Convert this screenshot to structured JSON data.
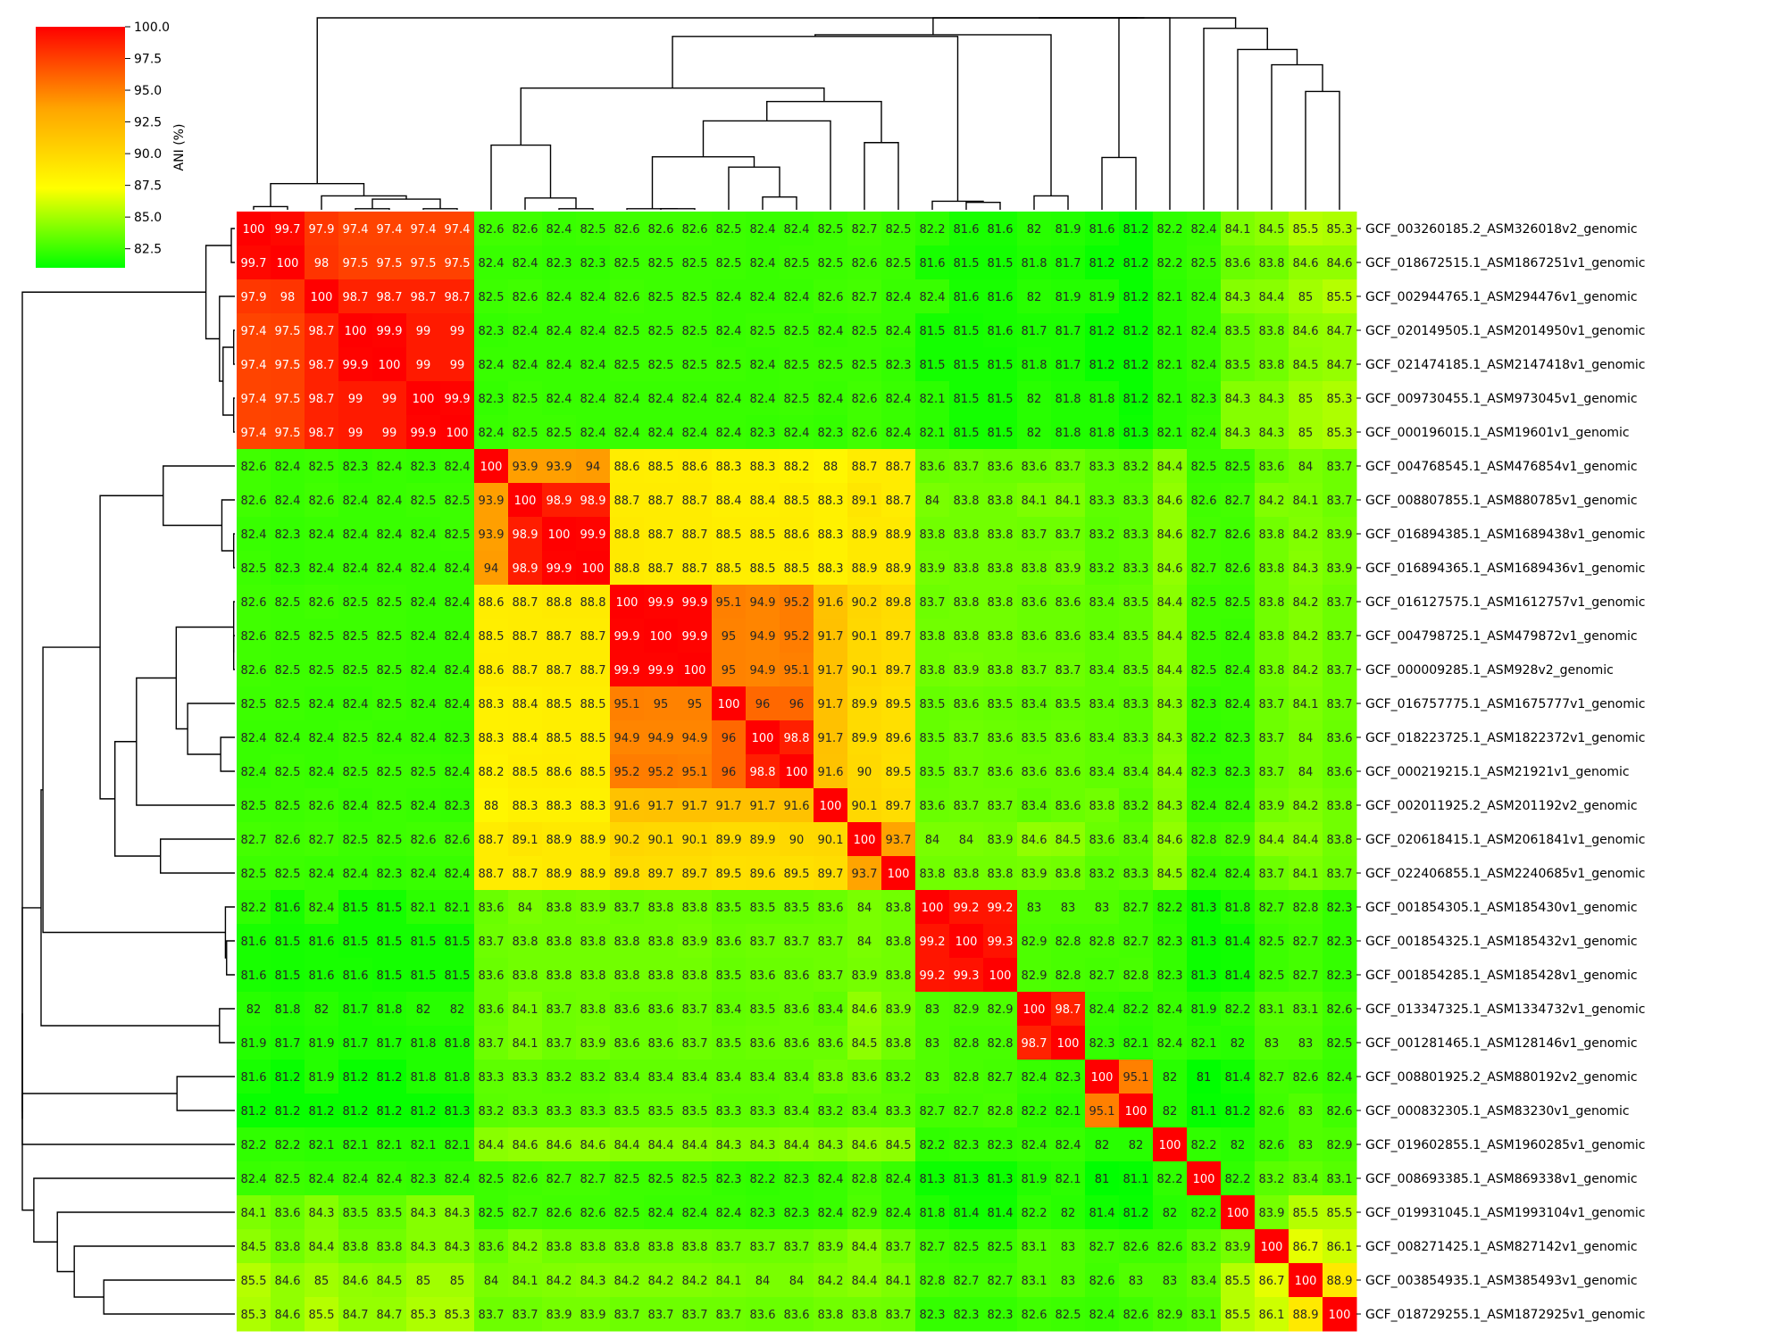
{
  "chart_data": {
    "type": "heatmap",
    "title": "",
    "xlabel": "",
    "ylabel": "",
    "colorbar": {
      "label": "ANI (%)",
      "min": 81.0,
      "max": 100.0,
      "ticks": [
        "100.0",
        "97.5",
        "95.0",
        "92.5",
        "90.0",
        "87.5",
        "85.0",
        "82.5"
      ],
      "tick_values": [
        100.0,
        97.5,
        95.0,
        92.5,
        90.0,
        87.5,
        85.0,
        82.5
      ],
      "colormap": [
        "#00ff00",
        "#ffff00",
        "#ffa500",
        "#ff0000"
      ]
    },
    "dendrograms": true,
    "row_labels": [
      "GCF_003260185.2_ASM326018v2_genomic",
      "GCF_018672515.1_ASM1867251v1_genomic",
      "GCF_002944765.1_ASM294476v1_genomic",
      "GCF_020149505.1_ASM2014950v1_genomic",
      "GCF_021474185.1_ASM2147418v1_genomic",
      "GCF_009730455.1_ASM973045v1_genomic",
      "GCF_000196015.1_ASM19601v1_genomic",
      "GCF_004768545.1_ASM476854v1_genomic",
      "GCF_008807855.1_ASM880785v1_genomic",
      "GCF_016894385.1_ASM1689438v1_genomic",
      "GCF_016894365.1_ASM1689436v1_genomic",
      "GCF_016127575.1_ASM1612757v1_genomic",
      "GCF_004798725.1_ASM479872v1_genomic",
      "GCF_000009285.1_ASM928v2_genomic",
      "GCF_016757775.1_ASM1675777v1_genomic",
      "GCF_018223725.1_ASM1822372v1_genomic",
      "GCF_000219215.1_ASM21921v1_genomic",
      "GCF_002011925.2_ASM201192v2_genomic",
      "GCF_020618415.1_ASM2061841v1_genomic",
      "GCF_022406855.1_ASM2240685v1_genomic",
      "GCF_001854305.1_ASM185430v1_genomic",
      "GCF_001854325.1_ASM185432v1_genomic",
      "GCF_001854285.1_ASM185428v1_genomic",
      "GCF_013347325.1_ASM1334732v1_genomic",
      "GCF_001281465.1_ASM128146v1_genomic",
      "GCF_008801925.2_ASM880192v2_genomic",
      "GCF_000832305.1_ASM83230v1_genomic",
      "GCF_019602855.1_ASM1960285v1_genomic",
      "GCF_008693385.1_ASM869338v1_genomic",
      "GCF_019931045.1_ASM1993104v1_genomic",
      "GCF_008271425.1_ASM827142v1_genomic",
      "GCF_003854935.1_ASM385493v1_genomic",
      "GCF_018729255.1_ASM1872925v1_genomic"
    ],
    "matrix": [
      [
        "100",
        "99.7",
        "97.9",
        "97.4",
        "97.4",
        "97.4",
        "97.4",
        "82.6",
        "82.6",
        "82.4",
        "82.5",
        "82.6",
        "82.6",
        "82.6",
        "82.5",
        "82.4",
        "82.4",
        "82.5",
        "82.7",
        "82.5",
        "82.2",
        "81.6",
        "81.6",
        "82",
        "81.9",
        "81.6",
        "81.2",
        "82.2",
        "82.4",
        "84.1",
        "84.5",
        "85.5",
        "85.3"
      ],
      [
        "99.7",
        "100",
        "98",
        "97.5",
        "97.5",
        "97.5",
        "97.5",
        "82.4",
        "82.4",
        "82.3",
        "82.3",
        "82.5",
        "82.5",
        "82.5",
        "82.5",
        "82.4",
        "82.5",
        "82.5",
        "82.6",
        "82.5",
        "81.6",
        "81.5",
        "81.5",
        "81.8",
        "81.7",
        "81.2",
        "81.2",
        "82.2",
        "82.5",
        "83.6",
        "83.8",
        "84.6",
        "84.6"
      ],
      [
        "97.9",
        "98",
        "100",
        "98.7",
        "98.7",
        "98.7",
        "98.7",
        "82.5",
        "82.6",
        "82.4",
        "82.4",
        "82.6",
        "82.5",
        "82.5",
        "82.4",
        "82.4",
        "82.4",
        "82.6",
        "82.7",
        "82.4",
        "82.4",
        "81.6",
        "81.6",
        "82",
        "81.9",
        "81.9",
        "81.2",
        "82.1",
        "82.4",
        "84.3",
        "84.4",
        "85",
        "85.5"
      ],
      [
        "97.4",
        "97.5",
        "98.7",
        "100",
        "99.9",
        "99",
        "99",
        "82.3",
        "82.4",
        "82.4",
        "82.4",
        "82.5",
        "82.5",
        "82.5",
        "82.4",
        "82.5",
        "82.5",
        "82.4",
        "82.5",
        "82.4",
        "81.5",
        "81.5",
        "81.6",
        "81.7",
        "81.7",
        "81.2",
        "81.2",
        "82.1",
        "82.4",
        "83.5",
        "83.8",
        "84.6",
        "84.7"
      ],
      [
        "97.4",
        "97.5",
        "98.7",
        "99.9",
        "100",
        "99",
        "99",
        "82.4",
        "82.4",
        "82.4",
        "82.4",
        "82.5",
        "82.5",
        "82.5",
        "82.5",
        "82.4",
        "82.5",
        "82.5",
        "82.5",
        "82.3",
        "81.5",
        "81.5",
        "81.5",
        "81.8",
        "81.7",
        "81.2",
        "81.2",
        "82.1",
        "82.4",
        "83.5",
        "83.8",
        "84.5",
        "84.7"
      ],
      [
        "97.4",
        "97.5",
        "98.7",
        "99",
        "99",
        "100",
        "99.9",
        "82.3",
        "82.5",
        "82.4",
        "82.4",
        "82.4",
        "82.4",
        "82.4",
        "82.4",
        "82.4",
        "82.5",
        "82.4",
        "82.6",
        "82.4",
        "82.1",
        "81.5",
        "81.5",
        "82",
        "81.8",
        "81.8",
        "81.2",
        "82.1",
        "82.3",
        "84.3",
        "84.3",
        "85",
        "85.3"
      ],
      [
        "97.4",
        "97.5",
        "98.7",
        "99",
        "99",
        "99.9",
        "100",
        "82.4",
        "82.5",
        "82.5",
        "82.4",
        "82.4",
        "82.4",
        "82.4",
        "82.4",
        "82.3",
        "82.4",
        "82.3",
        "82.6",
        "82.4",
        "82.1",
        "81.5",
        "81.5",
        "82",
        "81.8",
        "81.8",
        "81.3",
        "82.1",
        "82.4",
        "84.3",
        "84.3",
        "85",
        "85.3"
      ],
      [
        "82.6",
        "82.4",
        "82.5",
        "82.3",
        "82.4",
        "82.3",
        "82.4",
        "100",
        "93.9",
        "93.9",
        "94",
        "88.6",
        "88.5",
        "88.6",
        "88.3",
        "88.3",
        "88.2",
        "88",
        "88.7",
        "88.7",
        "83.6",
        "83.7",
        "83.6",
        "83.6",
        "83.7",
        "83.3",
        "83.2",
        "84.4",
        "82.5",
        "82.5",
        "83.6",
        "84",
        "83.7"
      ],
      [
        "82.6",
        "82.4",
        "82.6",
        "82.4",
        "82.4",
        "82.5",
        "82.5",
        "93.9",
        "100",
        "98.9",
        "98.9",
        "88.7",
        "88.7",
        "88.7",
        "88.4",
        "88.4",
        "88.5",
        "88.3",
        "89.1",
        "88.7",
        "84",
        "83.8",
        "83.8",
        "84.1",
        "84.1",
        "83.3",
        "83.3",
        "84.6",
        "82.6",
        "82.7",
        "84.2",
        "84.1",
        "83.7"
      ],
      [
        "82.4",
        "82.3",
        "82.4",
        "82.4",
        "82.4",
        "82.4",
        "82.5",
        "93.9",
        "98.9",
        "100",
        "99.9",
        "88.8",
        "88.7",
        "88.7",
        "88.5",
        "88.5",
        "88.6",
        "88.3",
        "88.9",
        "88.9",
        "83.8",
        "83.8",
        "83.8",
        "83.7",
        "83.7",
        "83.2",
        "83.3",
        "84.6",
        "82.7",
        "82.6",
        "83.8",
        "84.2",
        "83.9"
      ],
      [
        "82.5",
        "82.3",
        "82.4",
        "82.4",
        "82.4",
        "82.4",
        "82.4",
        "94",
        "98.9",
        "99.9",
        "100",
        "88.8",
        "88.7",
        "88.7",
        "88.5",
        "88.5",
        "88.5",
        "88.3",
        "88.9",
        "88.9",
        "83.9",
        "83.8",
        "83.8",
        "83.8",
        "83.9",
        "83.2",
        "83.3",
        "84.6",
        "82.7",
        "82.6",
        "83.8",
        "84.3",
        "83.9"
      ],
      [
        "82.6",
        "82.5",
        "82.6",
        "82.5",
        "82.5",
        "82.4",
        "82.4",
        "88.6",
        "88.7",
        "88.8",
        "88.8",
        "100",
        "99.9",
        "99.9",
        "95.1",
        "94.9",
        "95.2",
        "91.6",
        "90.2",
        "89.8",
        "83.7",
        "83.8",
        "83.8",
        "83.6",
        "83.6",
        "83.4",
        "83.5",
        "84.4",
        "82.5",
        "82.5",
        "83.8",
        "84.2",
        "83.7"
      ],
      [
        "82.6",
        "82.5",
        "82.5",
        "82.5",
        "82.5",
        "82.4",
        "82.4",
        "88.5",
        "88.7",
        "88.7",
        "88.7",
        "99.9",
        "100",
        "99.9",
        "95",
        "94.9",
        "95.2",
        "91.7",
        "90.1",
        "89.7",
        "83.8",
        "83.8",
        "83.8",
        "83.6",
        "83.6",
        "83.4",
        "83.5",
        "84.4",
        "82.5",
        "82.4",
        "83.8",
        "84.2",
        "83.7"
      ],
      [
        "82.6",
        "82.5",
        "82.5",
        "82.5",
        "82.5",
        "82.4",
        "82.4",
        "88.6",
        "88.7",
        "88.7",
        "88.7",
        "99.9",
        "99.9",
        "100",
        "95",
        "94.9",
        "95.1",
        "91.7",
        "90.1",
        "89.7",
        "83.8",
        "83.9",
        "83.8",
        "83.7",
        "83.7",
        "83.4",
        "83.5",
        "84.4",
        "82.5",
        "82.4",
        "83.8",
        "84.2",
        "83.7"
      ],
      [
        "82.5",
        "82.5",
        "82.4",
        "82.4",
        "82.5",
        "82.4",
        "82.4",
        "88.3",
        "88.4",
        "88.5",
        "88.5",
        "95.1",
        "95",
        "95",
        "100",
        "96",
        "96",
        "91.7",
        "89.9",
        "89.5",
        "83.5",
        "83.6",
        "83.5",
        "83.4",
        "83.5",
        "83.4",
        "83.3",
        "84.3",
        "82.3",
        "82.4",
        "83.7",
        "84.1",
        "83.7"
      ],
      [
        "82.4",
        "82.4",
        "82.4",
        "82.5",
        "82.4",
        "82.4",
        "82.3",
        "88.3",
        "88.4",
        "88.5",
        "88.5",
        "94.9",
        "94.9",
        "94.9",
        "96",
        "100",
        "98.8",
        "91.7",
        "89.9",
        "89.6",
        "83.5",
        "83.7",
        "83.6",
        "83.5",
        "83.6",
        "83.4",
        "83.3",
        "84.3",
        "82.2",
        "82.3",
        "83.7",
        "84",
        "83.6"
      ],
      [
        "82.4",
        "82.5",
        "82.4",
        "82.5",
        "82.5",
        "82.5",
        "82.4",
        "88.2",
        "88.5",
        "88.6",
        "88.5",
        "95.2",
        "95.2",
        "95.1",
        "96",
        "98.8",
        "100",
        "91.6",
        "90",
        "89.5",
        "83.5",
        "83.7",
        "83.6",
        "83.6",
        "83.6",
        "83.4",
        "83.4",
        "84.4",
        "82.3",
        "82.3",
        "83.7",
        "84",
        "83.6"
      ],
      [
        "82.5",
        "82.5",
        "82.6",
        "82.4",
        "82.5",
        "82.4",
        "82.3",
        "88",
        "88.3",
        "88.3",
        "88.3",
        "91.6",
        "91.7",
        "91.7",
        "91.7",
        "91.7",
        "91.6",
        "100",
        "90.1",
        "89.7",
        "83.6",
        "83.7",
        "83.7",
        "83.4",
        "83.6",
        "83.8",
        "83.2",
        "84.3",
        "82.4",
        "82.4",
        "83.9",
        "84.2",
        "83.8"
      ],
      [
        "82.7",
        "82.6",
        "82.7",
        "82.5",
        "82.5",
        "82.6",
        "82.6",
        "88.7",
        "89.1",
        "88.9",
        "88.9",
        "90.2",
        "90.1",
        "90.1",
        "89.9",
        "89.9",
        "90",
        "90.1",
        "100",
        "93.7",
        "84",
        "84",
        "83.9",
        "84.6",
        "84.5",
        "83.6",
        "83.4",
        "84.6",
        "82.8",
        "82.9",
        "84.4",
        "84.4",
        "83.8"
      ],
      [
        "82.5",
        "82.5",
        "82.4",
        "82.4",
        "82.3",
        "82.4",
        "82.4",
        "88.7",
        "88.7",
        "88.9",
        "88.9",
        "89.8",
        "89.7",
        "89.7",
        "89.5",
        "89.6",
        "89.5",
        "89.7",
        "93.7",
        "100",
        "83.8",
        "83.8",
        "83.8",
        "83.9",
        "83.8",
        "83.2",
        "83.3",
        "84.5",
        "82.4",
        "82.4",
        "83.7",
        "84.1",
        "83.7"
      ],
      [
        "82.2",
        "81.6",
        "82.4",
        "81.5",
        "81.5",
        "82.1",
        "82.1",
        "83.6",
        "84",
        "83.8",
        "83.9",
        "83.7",
        "83.8",
        "83.8",
        "83.5",
        "83.5",
        "83.5",
        "83.6",
        "84",
        "83.8",
        "100",
        "99.2",
        "99.2",
        "83",
        "83",
        "83",
        "82.7",
        "82.2",
        "81.3",
        "81.8",
        "82.7",
        "82.8",
        "82.3"
      ],
      [
        "81.6",
        "81.5",
        "81.6",
        "81.5",
        "81.5",
        "81.5",
        "81.5",
        "83.7",
        "83.8",
        "83.8",
        "83.8",
        "83.8",
        "83.8",
        "83.9",
        "83.6",
        "83.7",
        "83.7",
        "83.7",
        "84",
        "83.8",
        "99.2",
        "100",
        "99.3",
        "82.9",
        "82.8",
        "82.8",
        "82.7",
        "82.3",
        "81.3",
        "81.4",
        "82.5",
        "82.7",
        "82.3"
      ],
      [
        "81.6",
        "81.5",
        "81.6",
        "81.6",
        "81.5",
        "81.5",
        "81.5",
        "83.6",
        "83.8",
        "83.8",
        "83.8",
        "83.8",
        "83.8",
        "83.8",
        "83.5",
        "83.6",
        "83.6",
        "83.7",
        "83.9",
        "83.8",
        "99.2",
        "99.3",
        "100",
        "82.9",
        "82.8",
        "82.7",
        "82.8",
        "82.3",
        "81.3",
        "81.4",
        "82.5",
        "82.7",
        "82.3"
      ],
      [
        "82",
        "81.8",
        "82",
        "81.7",
        "81.8",
        "82",
        "82",
        "83.6",
        "84.1",
        "83.7",
        "83.8",
        "83.6",
        "83.6",
        "83.7",
        "83.4",
        "83.5",
        "83.6",
        "83.4",
        "84.6",
        "83.9",
        "83",
        "82.9",
        "82.9",
        "100",
        "98.7",
        "82.4",
        "82.2",
        "82.4",
        "81.9",
        "82.2",
        "83.1",
        "83.1",
        "82.6"
      ],
      [
        "81.9",
        "81.7",
        "81.9",
        "81.7",
        "81.7",
        "81.8",
        "81.8",
        "83.7",
        "84.1",
        "83.7",
        "83.9",
        "83.6",
        "83.6",
        "83.7",
        "83.5",
        "83.6",
        "83.6",
        "83.6",
        "84.5",
        "83.8",
        "83",
        "82.8",
        "82.8",
        "98.7",
        "100",
        "82.3",
        "82.1",
        "82.4",
        "82.1",
        "82",
        "83",
        "83",
        "82.5"
      ],
      [
        "81.6",
        "81.2",
        "81.9",
        "81.2",
        "81.2",
        "81.8",
        "81.8",
        "83.3",
        "83.3",
        "83.2",
        "83.2",
        "83.4",
        "83.4",
        "83.4",
        "83.4",
        "83.4",
        "83.4",
        "83.8",
        "83.6",
        "83.2",
        "83",
        "82.8",
        "82.7",
        "82.4",
        "82.3",
        "100",
        "95.1",
        "82",
        "81",
        "81.4",
        "82.7",
        "82.6",
        "82.4"
      ],
      [
        "81.2",
        "81.2",
        "81.2",
        "81.2",
        "81.2",
        "81.2",
        "81.3",
        "83.2",
        "83.3",
        "83.3",
        "83.3",
        "83.5",
        "83.5",
        "83.5",
        "83.3",
        "83.3",
        "83.4",
        "83.2",
        "83.4",
        "83.3",
        "82.7",
        "82.7",
        "82.8",
        "82.2",
        "82.1",
        "95.1",
        "100",
        "82",
        "81.1",
        "81.2",
        "82.6",
        "83",
        "82.6"
      ],
      [
        "82.2",
        "82.2",
        "82.1",
        "82.1",
        "82.1",
        "82.1",
        "82.1",
        "84.4",
        "84.6",
        "84.6",
        "84.6",
        "84.4",
        "84.4",
        "84.4",
        "84.3",
        "84.3",
        "84.4",
        "84.3",
        "84.6",
        "84.5",
        "82.2",
        "82.3",
        "82.3",
        "82.4",
        "82.4",
        "82",
        "82",
        "100",
        "82.2",
        "82",
        "82.6",
        "83",
        "82.9"
      ],
      [
        "82.4",
        "82.5",
        "82.4",
        "82.4",
        "82.4",
        "82.3",
        "82.4",
        "82.5",
        "82.6",
        "82.7",
        "82.7",
        "82.5",
        "82.5",
        "82.5",
        "82.3",
        "82.2",
        "82.3",
        "82.4",
        "82.8",
        "82.4",
        "81.3",
        "81.3",
        "81.3",
        "81.9",
        "82.1",
        "81",
        "81.1",
        "82.2",
        "100",
        "82.2",
        "83.2",
        "83.4",
        "83.1"
      ],
      [
        "84.1",
        "83.6",
        "84.3",
        "83.5",
        "83.5",
        "84.3",
        "84.3",
        "82.5",
        "82.7",
        "82.6",
        "82.6",
        "82.5",
        "82.4",
        "82.4",
        "82.4",
        "82.3",
        "82.3",
        "82.4",
        "82.9",
        "82.4",
        "81.8",
        "81.4",
        "81.4",
        "82.2",
        "82",
        "81.4",
        "81.2",
        "82",
        "82.2",
        "100",
        "83.9",
        "85.5",
        "85.5"
      ],
      [
        "84.5",
        "83.8",
        "84.4",
        "83.8",
        "83.8",
        "84.3",
        "84.3",
        "83.6",
        "84.2",
        "83.8",
        "83.8",
        "83.8",
        "83.8",
        "83.8",
        "83.7",
        "83.7",
        "83.7",
        "83.9",
        "84.4",
        "83.7",
        "82.7",
        "82.5",
        "82.5",
        "83.1",
        "83",
        "82.7",
        "82.6",
        "82.6",
        "83.2",
        "83.9",
        "100",
        "86.7",
        "86.1"
      ],
      [
        "85.5",
        "84.6",
        "85",
        "84.6",
        "84.5",
        "85",
        "85",
        "84",
        "84.1",
        "84.2",
        "84.3",
        "84.2",
        "84.2",
        "84.2",
        "84.1",
        "84",
        "84",
        "84.2",
        "84.4",
        "84.1",
        "82.8",
        "82.7",
        "82.7",
        "83.1",
        "83",
        "82.6",
        "83",
        "83",
        "83.4",
        "85.5",
        "86.7",
        "100",
        "88.9"
      ],
      [
        "85.3",
        "84.6",
        "85.5",
        "84.7",
        "84.7",
        "85.3",
        "85.3",
        "83.7",
        "83.7",
        "83.9",
        "83.9",
        "83.7",
        "83.7",
        "83.7",
        "83.7",
        "83.6",
        "83.6",
        "83.8",
        "83.8",
        "83.7",
        "82.3",
        "82.3",
        "82.3",
        "82.6",
        "82.5",
        "82.4",
        "82.6",
        "82.9",
        "83.1",
        "85.5",
        "86.1",
        "88.9",
        "100"
      ]
    ]
  }
}
